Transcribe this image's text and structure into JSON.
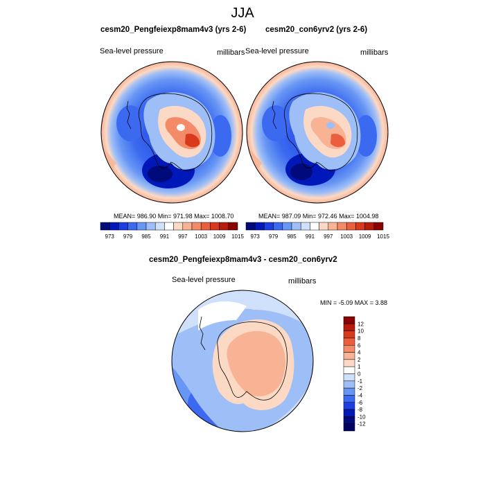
{
  "figure": {
    "title": "JJA",
    "panels": [
      {
        "title": "cesm20_Pengfeiexp8mam4v3 (yrs 2-6)",
        "field": "Sea-level pressure",
        "units": "millibars",
        "stats": "MEAN= 986.90  Min= 971.98  Max= 1008.70"
      },
      {
        "title": "cesm20_con6yrv2 (yrs 2-6)",
        "field": "Sea-level pressure",
        "units": "millibars",
        "stats": "MEAN= 987.09  Min= 972.46  Max= 1004.98"
      },
      {
        "title": "cesm20_Pengfeiexp8mam4v3 - cesm20_con6yrv2",
        "field": "Sea-level pressure",
        "units": "millibars",
        "stats": "MIN =  -5.09 MAX =   3.88"
      }
    ],
    "abs_colorbar": {
      "labels": [
        "973",
        "979",
        "985",
        "991",
        "997",
        "1003",
        "1009",
        "1015"
      ],
      "colors": [
        "#000a7a",
        "#0018b8",
        "#1c3ee0",
        "#3b6af0",
        "#6896f4",
        "#9ebef7",
        "#cfe0fa",
        "#ffffff",
        "#fcd9c5",
        "#f8b395",
        "#f38a68",
        "#ec5f3e",
        "#da3a1c",
        "#b81b0c",
        "#880303"
      ]
    },
    "diff_colorbar": {
      "labels": [
        "12",
        "10",
        "8",
        "6",
        "4",
        "2",
        "1",
        "0",
        "-1",
        "-2",
        "-4",
        "-6",
        "-8",
        "-10",
        "-12"
      ],
      "colors": [
        "#880303",
        "#b81b0c",
        "#da3a1c",
        "#ec5f3e",
        "#f38a68",
        "#f8b395",
        "#fcd9c5",
        "#ffffff",
        "#cfe0fa",
        "#9ebef7",
        "#6896f4",
        "#3b6af0",
        "#1c3ee0",
        "#0018b8",
        "#000a7a",
        "#000060"
      ]
    }
  }
}
